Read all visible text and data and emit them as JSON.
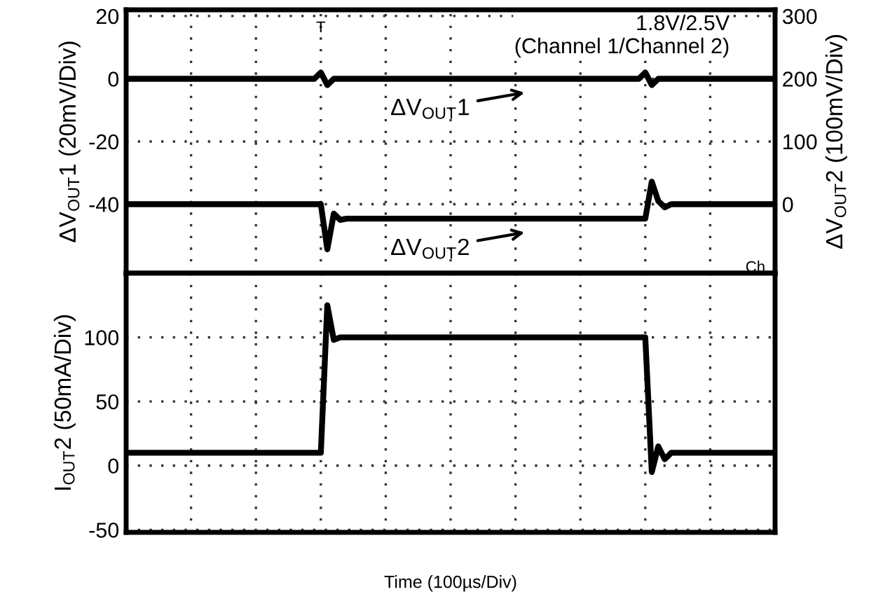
{
  "chart_data": [
    {
      "type": "line",
      "ylabel": "ΔV$_{OUT}$1 (20mV/Div)",
      "y2label": "ΔV$_{OUT}$2 (100mV/Div)",
      "annotations": [
        "1.8V/2.5V\n(Channel 1/Channel 2)",
        "T",
        "Ch"
      ],
      "categories": [
        null,
        null,
        null,
        null,
        null,
        null,
        null,
        null,
        null,
        null,
        null,
        null,
        null,
        null,
        null,
        null,
        null,
        null,
        null,
        null,
        null,
        null,
        null,
        null,
        null,
        null,
        null,
        null,
        null,
        null,
        null,
        null,
        null,
        null,
        null,
        null,
        null,
        null,
        null,
        null,
        null,
        null,
        null,
        null,
        null,
        null,
        null,
        null,
        null,
        null,
        null,
        null,
        null,
        null,
        null,
        null,
        null,
        null,
        null,
        null,
        null,
        null,
        null,
        null,
        null,
        null,
        null,
        null,
        null,
        null,
        null,
        null,
        null,
        null,
        null,
        null,
        null,
        null,
        null,
        null,
        null,
        null,
        null,
        null,
        null,
        null,
        null,
        null,
        null,
        null,
        null,
        null,
        null,
        null,
        null,
        null,
        null,
        null,
        null,
        null,
        null
      ],
      "series": [
        {
          "name": "ΔV$_{OUT}$1",
          "color": "#000000",
          "values": [
            0,
            0,
            0,
            0,
            0,
            0,
            0,
            0,
            0,
            0,
            0,
            0,
            0,
            0,
            0,
            0,
            0,
            0,
            0,
            0,
            0,
            0,
            0,
            0,
            0,
            0,
            0,
            0,
            0,
            0,
            2,
            -2,
            0,
            0,
            0,
            0,
            0,
            0,
            0,
            0,
            0,
            0,
            0,
            0,
            0,
            0,
            0,
            0,
            0,
            0,
            0,
            0,
            0,
            0,
            0,
            0,
            0,
            0,
            0,
            0,
            0,
            0,
            0,
            0,
            0,
            0,
            0,
            0,
            0,
            0,
            0,
            0,
            0,
            0,
            0,
            0,
            0,
            0,
            0,
            0,
            2,
            -2,
            0,
            0,
            0,
            0,
            0,
            0,
            0,
            0,
            0,
            0,
            0,
            0,
            0,
            0,
            0,
            0,
            0,
            0,
            0
          ]
        },
        {
          "name": "ΔV$_{OUT}$2",
          "color": "#000000",
          "axis": "y2",
          "values": [
            0,
            0,
            0,
            0,
            0,
            0,
            0,
            0,
            0,
            0,
            0,
            0,
            0,
            0,
            0,
            0,
            0,
            0,
            0,
            0,
            0,
            0,
            0,
            0,
            0,
            0,
            0,
            0,
            0,
            0,
            0,
            -72,
            -15,
            -25,
            -23,
            -23,
            -23,
            -23,
            -23,
            -23,
            -23,
            -23,
            -23,
            -23,
            -23,
            -23,
            -23,
            -23,
            -23,
            -23,
            -23,
            -23,
            -23,
            -23,
            -23,
            -23,
            -23,
            -23,
            -23,
            -23,
            -23,
            -23,
            -23,
            -23,
            -23,
            -23,
            -23,
            -23,
            -23,
            -23,
            -23,
            -23,
            -23,
            -23,
            -23,
            -23,
            -23,
            -23,
            -23,
            -23,
            -23,
            36,
            5,
            -5,
            0,
            0,
            0,
            0,
            0,
            0,
            0,
            0,
            0,
            0,
            0,
            0,
            0,
            0,
            0,
            0,
            0
          ]
        }
      ],
      "ylim": [
        -62,
        22
      ],
      "yticks": [
        20,
        0,
        -20,
        -40
      ],
      "y2lim": [
        -110,
        310
      ],
      "y2ticks": [
        300,
        200,
        100,
        0
      ],
      "grid": true,
      "tick_labels": "y",
      "legend": "center"
    },
    {
      "type": "line",
      "ylabel": "I$_{OUT}$2 (50mA/Div)",
      "xlabel": "Time (100µs/Div)",
      "categories": [
        null,
        null,
        null,
        null,
        null,
        null,
        null,
        null,
        null,
        null,
        null,
        null,
        null,
        null,
        null,
        null,
        null,
        null,
        null,
        null,
        null,
        null,
        null,
        null,
        null,
        null,
        null,
        null,
        null,
        null,
        null,
        null,
        null,
        null,
        null,
        null,
        null,
        null,
        null,
        null,
        null,
        null,
        null,
        null,
        null,
        null,
        null,
        null,
        null,
        null,
        null,
        null,
        null,
        null,
        null,
        null,
        null,
        null,
        null,
        null,
        null,
        null,
        null,
        null,
        null,
        null,
        null,
        null,
        null,
        null,
        null,
        null,
        null,
        null,
        null,
        null,
        null,
        null,
        null,
        null,
        null,
        null,
        null,
        null,
        null,
        null,
        null,
        null,
        null,
        null,
        null,
        null,
        null,
        null,
        null,
        null,
        null,
        null,
        null,
        null,
        null
      ],
      "series": [
        {
          "color": "#000000",
          "values": [
            10,
            10,
            10,
            10,
            10,
            10,
            10,
            10,
            10,
            10,
            10,
            10,
            10,
            10,
            10,
            10,
            10,
            10,
            10,
            10,
            10,
            10,
            10,
            10,
            10,
            10,
            10,
            10,
            10,
            10,
            10,
            125,
            98,
            100,
            100,
            100,
            100,
            100,
            100,
            100,
            100,
            100,
            100,
            100,
            100,
            100,
            100,
            100,
            100,
            100,
            100,
            100,
            100,
            100,
            100,
            100,
            100,
            100,
            100,
            100,
            100,
            100,
            100,
            100,
            100,
            100,
            100,
            100,
            100,
            100,
            100,
            100,
            100,
            100,
            100,
            100,
            100,
            100,
            100,
            100,
            100,
            -5,
            15,
            5,
            10,
            10,
            10,
            10,
            10,
            10,
            10,
            10,
            10,
            10,
            10,
            10,
            10,
            10,
            10,
            10,
            10
          ]
        }
      ],
      "ylim": [
        -52,
        150
      ],
      "yticks": [
        100,
        50,
        0,
        -50
      ],
      "grid": true,
      "tick_labels": "y"
    }
  ]
}
